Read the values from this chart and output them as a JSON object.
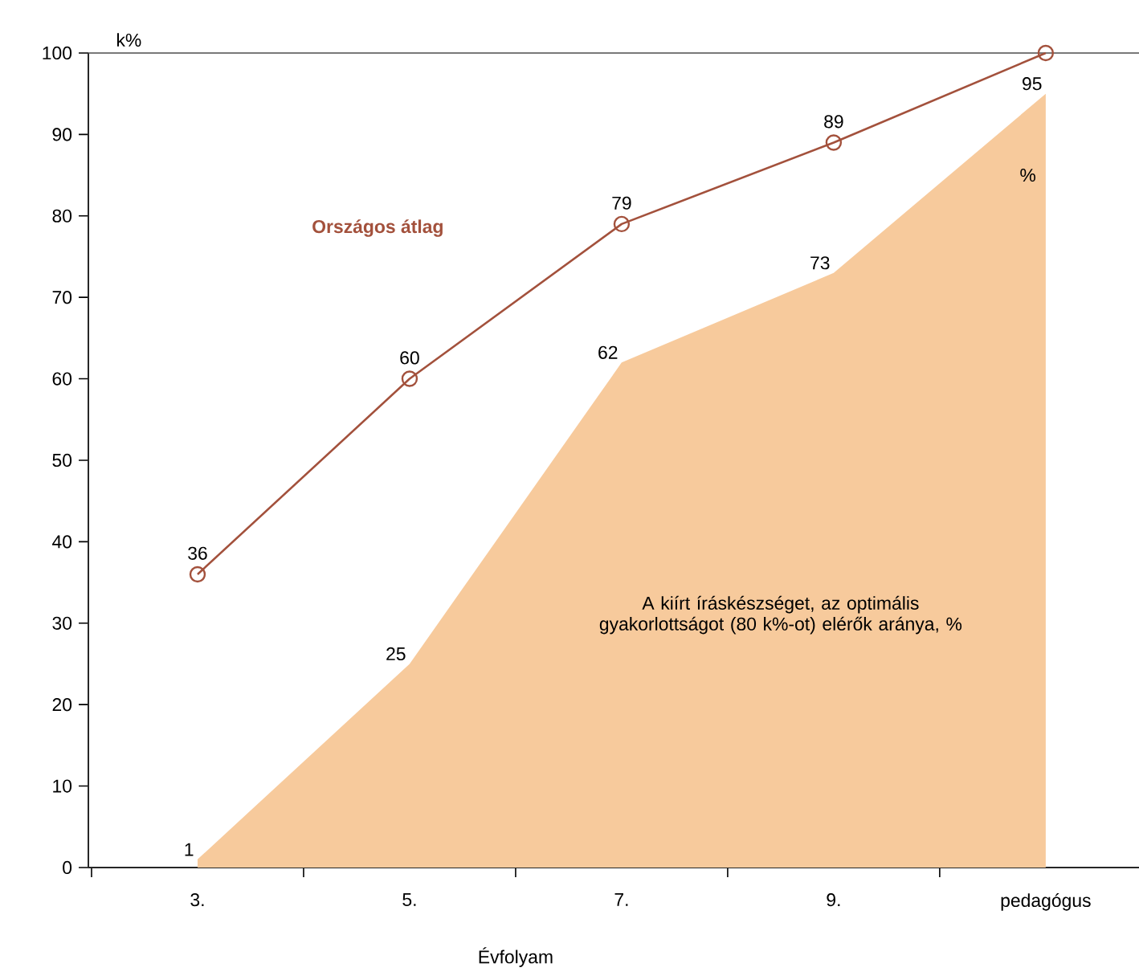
{
  "chart_data": {
    "type": "line",
    "xlabel": "Évfolyam",
    "ylabel": "k%",
    "categories": [
      "3.",
      "5.",
      "7.",
      "9.",
      "pedagógus"
    ],
    "series": [
      {
        "name": "Országos átlag",
        "color": "#a3513c",
        "marker": "circle",
        "values": [
          36,
          60,
          79,
          89,
          100
        ],
        "value_labels": [
          "36",
          "60",
          "79",
          "89",
          null
        ]
      },
      {
        "name": "A kiírt íráskészséget, az optimális gyakorlottságot (80 k%-ot) elérők aránya, %",
        "type": "area",
        "color": "#f7ca9c",
        "values": [
          1,
          25,
          62,
          73,
          95
        ],
        "value_labels": [
          "1",
          "25",
          "62",
          "73",
          "95"
        ]
      }
    ],
    "ylim": [
      0,
      100
    ],
    "yticks": [
      0,
      10,
      20,
      30,
      40,
      50,
      60,
      70,
      80,
      90,
      100
    ],
    "ref_lines": [
      {
        "axis": "y",
        "value": 100
      }
    ],
    "annotations": [
      {
        "text": "%",
        "x": "pedagógus",
        "y": 85
      }
    ]
  }
}
